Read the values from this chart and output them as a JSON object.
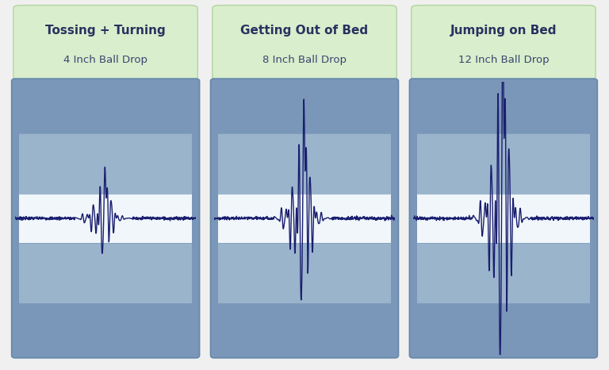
{
  "panels": [
    {
      "title": "Tossing + Turning",
      "subtitle": "4 Inch Ball Drop",
      "amplitude": 0.28
    },
    {
      "title": "Getting Out of Bed",
      "subtitle": "8 Inch Ball Drop",
      "amplitude": 0.65
    },
    {
      "title": "Jumping on Bed",
      "subtitle": "12 Inch Ball Drop",
      "amplitude": 1.1
    }
  ],
  "bg_color": "#f0f0f0",
  "header_bg": "#d8eecc",
  "header_border": "#b5d4a0",
  "panel_dark": "#7a96b8",
  "panel_mid": "#9ab4cc",
  "panel_light": "#b8d0e0",
  "panel_white": "#f0f6fa",
  "wave_color": "#1a1e6e",
  "title_color": "#2a3060",
  "subtitle_color": "#3a4470",
  "title_fontsize": 11,
  "subtitle_fontsize": 9.5
}
